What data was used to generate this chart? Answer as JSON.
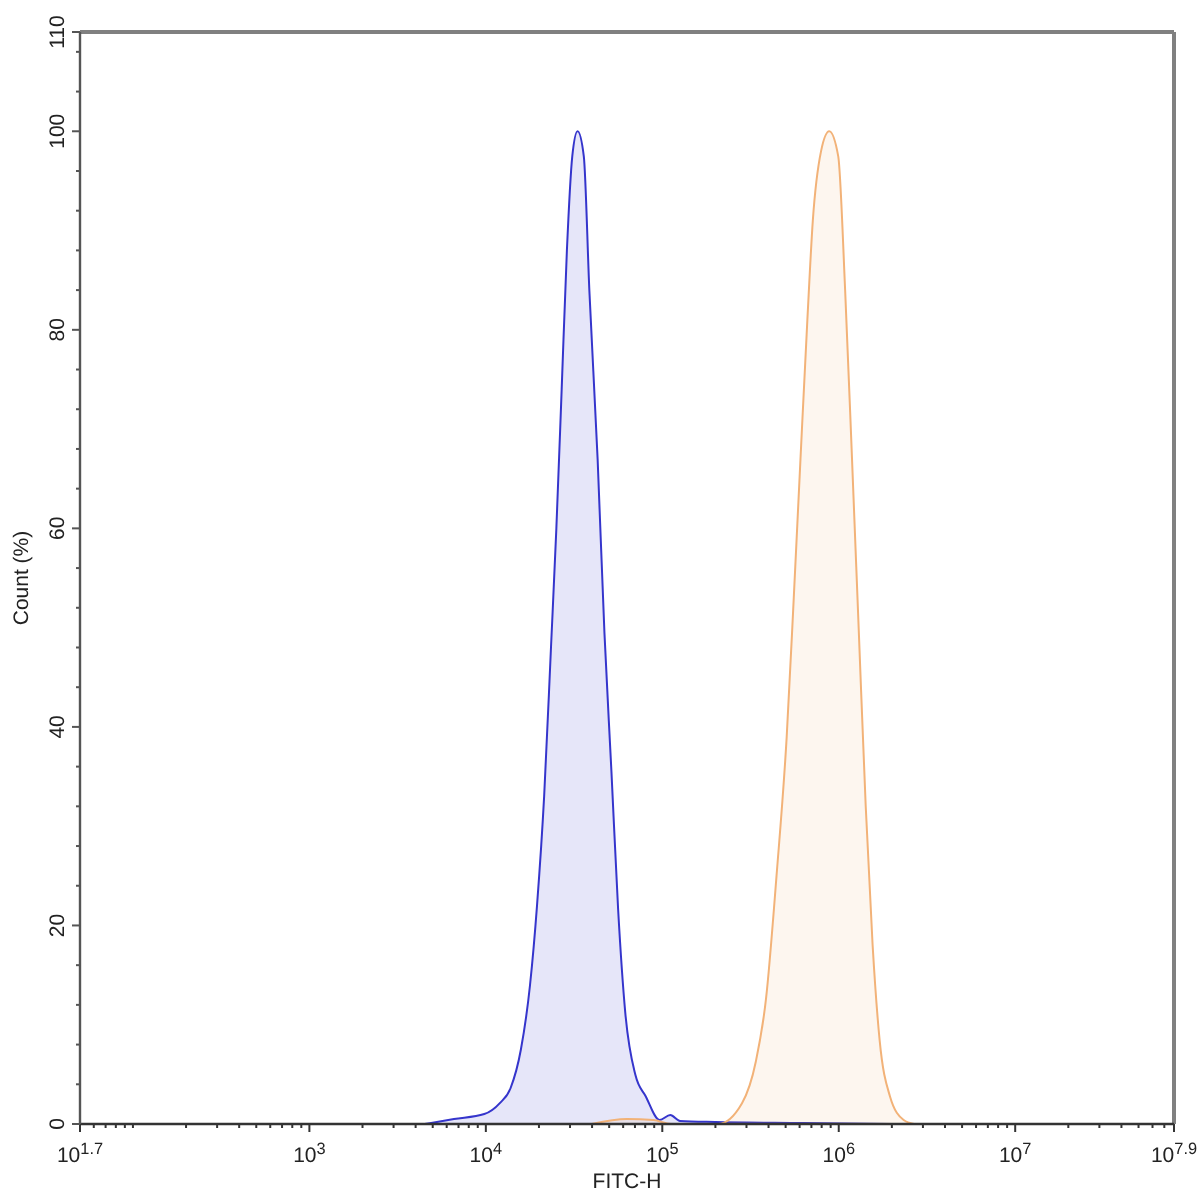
{
  "chart_data": {
    "type": "area",
    "xlabel": "FITC-H",
    "ylabel": "Count (%)",
    "log": "x",
    "xlim": [
      50.12,
      79430000
    ],
    "ylim": [
      0,
      110
    ],
    "xticks": [
      {
        "value": 50.12,
        "label": "10$^{1.7}$"
      },
      {
        "value": 60,
        "label": null
      },
      {
        "value": 70,
        "label": null
      },
      {
        "value": 80,
        "label": null
      },
      {
        "value": 90,
        "label": null
      },
      {
        "value": 100,
        "label": null
      },
      {
        "value": 200,
        "label": null
      },
      {
        "value": 300,
        "label": null
      },
      {
        "value": 400,
        "label": null
      },
      {
        "value": 500,
        "label": null
      },
      {
        "value": 600,
        "label": null
      },
      {
        "value": 700,
        "label": null
      },
      {
        "value": 800,
        "label": null
      },
      {
        "value": 900,
        "label": null
      },
      {
        "value": 1000,
        "label": "10$^{3}$"
      },
      {
        "value": 2000,
        "label": null
      },
      {
        "value": 3000,
        "label": null
      },
      {
        "value": 4000,
        "label": null
      },
      {
        "value": 5000,
        "label": null
      },
      {
        "value": 6000,
        "label": null
      },
      {
        "value": 7000,
        "label": null
      },
      {
        "value": 8000,
        "label": null
      },
      {
        "value": 9000,
        "label": null
      },
      {
        "value": 10000,
        "label": "10$^{4}$"
      },
      {
        "value": 20000,
        "label": null
      },
      {
        "value": 30000,
        "label": null
      },
      {
        "value": 40000,
        "label": null
      },
      {
        "value": 50000,
        "label": null
      },
      {
        "value": 60000,
        "label": null
      },
      {
        "value": 70000,
        "label": null
      },
      {
        "value": 80000,
        "label": null
      },
      {
        "value": 90000,
        "label": null
      },
      {
        "value": 100000,
        "label": "10$^{5}$"
      },
      {
        "value": 200000,
        "label": null
      },
      {
        "value": 300000,
        "label": null
      },
      {
        "value": 400000,
        "label": null
      },
      {
        "value": 500000,
        "label": null
      },
      {
        "value": 600000,
        "label": null
      },
      {
        "value": 700000,
        "label": null
      },
      {
        "value": 800000,
        "label": null
      },
      {
        "value": 900000,
        "label": null
      },
      {
        "value": 1000000,
        "label": "10$^{6}$"
      },
      {
        "value": 2000000,
        "label": null
      },
      {
        "value": 3000000,
        "label": null
      },
      {
        "value": 4000000,
        "label": null
      },
      {
        "value": 5000000,
        "label": null
      },
      {
        "value": 6000000,
        "label": null
      },
      {
        "value": 7000000,
        "label": null
      },
      {
        "value": 8000000,
        "label": null
      },
      {
        "value": 9000000,
        "label": null
      },
      {
        "value": 10000000,
        "label": "10$^{7}$"
      },
      {
        "value": 20000000,
        "label": null
      },
      {
        "value": 30000000,
        "label": null
      },
      {
        "value": 40000000,
        "label": null
      },
      {
        "value": 50000000,
        "label": null
      },
      {
        "value": 60000000,
        "label": null
      },
      {
        "value": 70000000,
        "label": null
      },
      {
        "value": 79430000,
        "label": "10$^{7.9}$"
      }
    ],
    "yticks": [
      0,
      {
        "value": 4,
        "label": null
      },
      {
        "value": 8,
        "label": null
      },
      {
        "value": 12,
        "label": null
      },
      {
        "value": 16,
        "label": null
      },
      20,
      {
        "value": 24,
        "label": null
      },
      {
        "value": 28,
        "label": null
      },
      {
        "value": 32,
        "label": null
      },
      {
        "value": 36,
        "label": null
      },
      40,
      {
        "value": 44,
        "label": null
      },
      {
        "value": 48,
        "label": null
      },
      {
        "value": 52,
        "label": null
      },
      {
        "value": 56,
        "label": null
      },
      60,
      {
        "value": 64,
        "label": null
      },
      {
        "value": 68,
        "label": null
      },
      {
        "value": 72,
        "label": null
      },
      {
        "value": 76,
        "label": null
      },
      80,
      {
        "value": 84,
        "label": null
      },
      {
        "value": 88,
        "label": null
      },
      {
        "value": 92,
        "label": null
      },
      {
        "value": 96,
        "label": null
      },
      100,
      {
        "value": 104,
        "label": null
      },
      {
        "value": 108,
        "label": null
      },
      110
    ],
    "series": [
      {
        "color": "#3535cc",
        "x": [
          4500,
          6600,
          9800,
          12000,
          13800,
          15800,
          17800,
          19500,
          21400,
          23400,
          25100,
          26900,
          28800,
          30900,
          33100,
          35900,
          38600,
          43000,
          47000,
          51500,
          56200,
          61700,
          70500,
          80500,
          96600,
          111000,
          126000,
          200000,
          631000,
          2000000
        ],
        "values": [
          0,
          0.5,
          1,
          2.1,
          3.6,
          7.5,
          14,
          22,
          33,
          48,
          60,
          74,
          88,
          97.5,
          100,
          97.5,
          84,
          67,
          49.5,
          35.5,
          21.6,
          11.2,
          4.9,
          2.8,
          0.4,
          0.9,
          0.3,
          0.2,
          0.1,
          0
        ]
      },
      {
        "color": "#f2b278",
        "x": [
          39800,
          63100,
          89100,
          112000,
          207000,
          283000,
          339000,
          387000,
          444000,
          507000,
          556000,
          607000,
          664000,
          713000,
          794000,
          883000,
          993000,
          1087000,
          1189000,
          1300000,
          1422000,
          1556000,
          1706000,
          1950000,
          2333000,
          2673000
        ],
        "values": [
          0,
          0.5,
          0.4,
          0,
          0,
          2.1,
          6.3,
          12.6,
          25,
          39,
          53,
          67,
          81,
          91,
          98,
          100,
          97.5,
          84,
          67,
          49.5,
          32,
          18,
          8.4,
          2.8,
          0.4,
          0
        ]
      }
    ]
  }
}
